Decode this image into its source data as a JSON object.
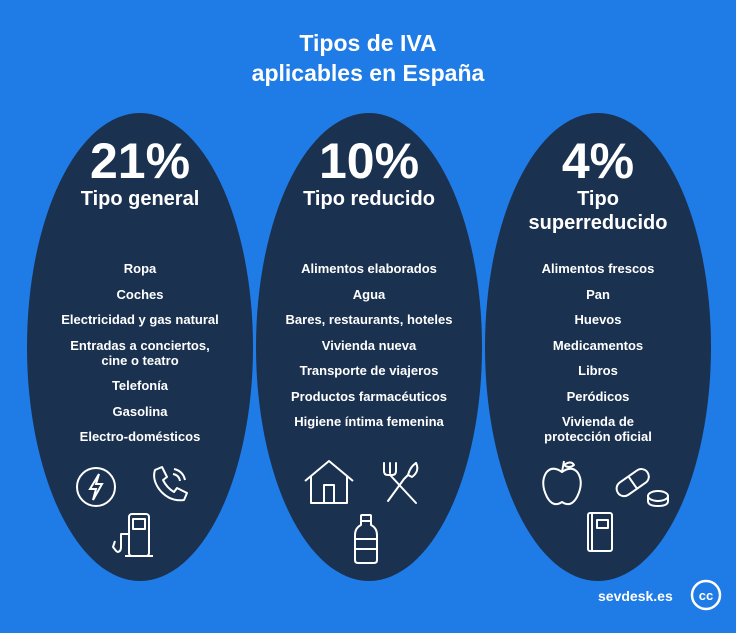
{
  "title": {
    "line1": "Tipos de IVA",
    "line2": "aplicables en España"
  },
  "columns": [
    {
      "rate": "21%",
      "type": "Tipo general",
      "items": [
        "Ropa",
        "Coches",
        "Electricidad y gas natural",
        "Entradas a conciertos,\ncine o teatro",
        "Telefonía",
        "Gasolina",
        "Electro-domésticos"
      ],
      "icons": [
        "lightning-icon",
        "phone-icon",
        "fuel-pump-icon"
      ]
    },
    {
      "rate": "10%",
      "type": "Tipo reducido",
      "items": [
        "Alimentos elaborados",
        "Agua",
        "Bares, restaurants, hoteles",
        "Vivienda nueva",
        "Transporte de viajeros",
        "Productos farmacéuticos",
        "Higiene íntima femenina"
      ],
      "icons": [
        "house-icon",
        "utensils-icon",
        "water-bottle-icon"
      ]
    },
    {
      "rate": "4%",
      "type": "Tipo\nsuperreducido",
      "items": [
        "Alimentos frescos",
        "Pan",
        "Huevos",
        "Medicamentos",
        "Libros",
        "Peródicos",
        "Vivienda de\nprotección oficial"
      ],
      "icons": [
        "apple-icon",
        "pills-icon",
        "book-icon"
      ]
    }
  ],
  "footer": {
    "brand": "sevdesk.es",
    "badge": "cc"
  },
  "colors": {
    "background": "#1f7be6",
    "oval": "#1b3150",
    "text": "#ffffff"
  }
}
